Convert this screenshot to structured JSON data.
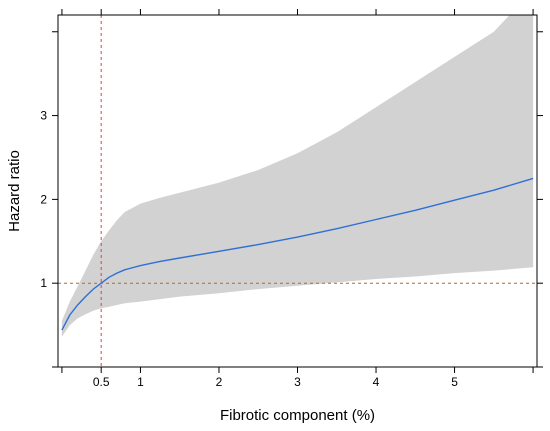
{
  "chart_data": {
    "type": "line",
    "xlabel": "Fibrotic component (%)",
    "ylabel": "Hazard ratio",
    "xlim": [
      -0.05,
      6.05
    ],
    "ylim": [
      0,
      4.2
    ],
    "x_ticks": [
      0.5,
      1,
      2,
      3,
      4,
      5
    ],
    "x_tick_labels": [
      "0.5",
      "1",
      "2",
      "3",
      "4",
      "5"
    ],
    "x_minor_ticks": [
      0,
      6
    ],
    "y_ticks": [
      1,
      2,
      3
    ],
    "y_tick_labels": [
      "1",
      "2",
      "3"
    ],
    "y_minor_ticks": [
      0,
      4
    ],
    "grid": false,
    "reference_lines": {
      "x": 0.5,
      "y": 1,
      "color": "#e04040",
      "style": "dashed"
    },
    "colors": {
      "line": "#2f6fd6",
      "band": "#d2d2d2"
    },
    "series": [
      {
        "x": [
          0,
          0.1,
          0.2,
          0.3,
          0.4,
          0.5,
          0.6,
          0.7,
          0.8,
          1,
          1.25,
          1.5,
          2,
          2.5,
          3,
          3.5,
          4,
          4.5,
          5,
          5.5,
          6
        ],
        "y": [
          0.44,
          0.62,
          0.74,
          0.84,
          0.93,
          1.0,
          1.07,
          1.12,
          1.16,
          1.21,
          1.26,
          1.3,
          1.38,
          1.46,
          1.55,
          1.65,
          1.76,
          1.87,
          1.99,
          2.11,
          2.25
        ],
        "lower": [
          0.36,
          0.5,
          0.58,
          0.63,
          0.67,
          0.7,
          0.72,
          0.74,
          0.76,
          0.78,
          0.81,
          0.84,
          0.88,
          0.93,
          0.97,
          1.01,
          1.05,
          1.08,
          1.12,
          1.15,
          1.19
        ],
        "upper": [
          0.55,
          0.78,
          0.96,
          1.15,
          1.34,
          1.5,
          1.63,
          1.75,
          1.85,
          1.95,
          2.02,
          2.08,
          2.2,
          2.35,
          2.55,
          2.8,
          3.1,
          3.4,
          3.7,
          4.0,
          4.5
        ]
      }
    ]
  }
}
